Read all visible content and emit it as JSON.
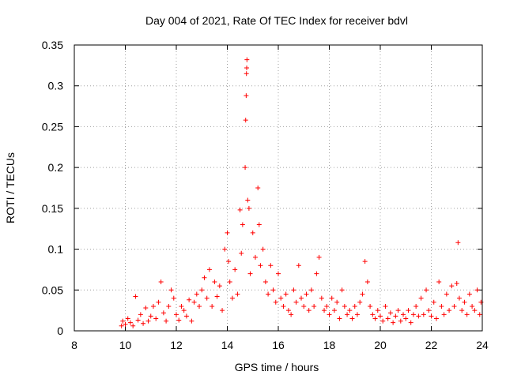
{
  "chart_data": {
    "type": "scatter",
    "title": "Day 004 of 2021, Rate Of TEC Index for receiver bdvl",
    "xlabel": "GPS time / hours",
    "ylabel": "ROTI / TECUs",
    "xlim": [
      8,
      24
    ],
    "ylim": [
      0,
      0.35
    ],
    "xticks": [
      8,
      10,
      12,
      14,
      16,
      18,
      20,
      22,
      24
    ],
    "yticks": [
      0,
      0.05,
      0.1,
      0.15,
      0.2,
      0.25,
      0.3,
      0.35
    ],
    "xtick_labels": [
      "8",
      "10",
      "12",
      "14",
      "16",
      "18",
      "20",
      "22",
      "24"
    ],
    "ytick_labels": [
      "0",
      "0.05",
      "0.1",
      "0.15",
      "0.2",
      "0.25",
      "0.3",
      "0.35"
    ],
    "grid": true,
    "legend": "none",
    "marker": "+",
    "series": [
      {
        "name": "ROTI",
        "color": "#ff0000",
        "points": [
          [
            9.85,
            0.006
          ],
          [
            9.9,
            0.012
          ],
          [
            10.0,
            0.008
          ],
          [
            10.1,
            0.015
          ],
          [
            10.2,
            0.01
          ],
          [
            10.3,
            0.006
          ],
          [
            10.4,
            0.042
          ],
          [
            10.5,
            0.013
          ],
          [
            10.6,
            0.02
          ],
          [
            10.7,
            0.009
          ],
          [
            10.8,
            0.028
          ],
          [
            10.9,
            0.012
          ],
          [
            11.0,
            0.018
          ],
          [
            11.1,
            0.03
          ],
          [
            11.2,
            0.015
          ],
          [
            11.3,
            0.035
          ],
          [
            11.4,
            0.06
          ],
          [
            11.5,
            0.022
          ],
          [
            11.6,
            0.012
          ],
          [
            11.7,
            0.03
          ],
          [
            11.8,
            0.05
          ],
          [
            11.9,
            0.04
          ],
          [
            12.0,
            0.02
          ],
          [
            12.1,
            0.013
          ],
          [
            12.2,
            0.03
          ],
          [
            12.3,
            0.025
          ],
          [
            12.4,
            0.018
          ],
          [
            12.5,
            0.038
          ],
          [
            12.6,
            0.012
          ],
          [
            12.7,
            0.035
          ],
          [
            12.8,
            0.045
          ],
          [
            12.9,
            0.03
          ],
          [
            13.0,
            0.05
          ],
          [
            13.1,
            0.065
          ],
          [
            13.2,
            0.04
          ],
          [
            13.3,
            0.075
          ],
          [
            13.4,
            0.03
          ],
          [
            13.5,
            0.06
          ],
          [
            13.6,
            0.042
          ],
          [
            13.7,
            0.055
          ],
          [
            13.8,
            0.025
          ],
          [
            13.9,
            0.1
          ],
          [
            14.0,
            0.12
          ],
          [
            14.05,
            0.085
          ],
          [
            14.1,
            0.06
          ],
          [
            14.2,
            0.04
          ],
          [
            14.3,
            0.075
          ],
          [
            14.4,
            0.045
          ],
          [
            14.5,
            0.148
          ],
          [
            14.55,
            0.095
          ],
          [
            14.6,
            0.13
          ],
          [
            14.7,
            0.2
          ],
          [
            14.72,
            0.258
          ],
          [
            14.74,
            0.288
          ],
          [
            14.75,
            0.315
          ],
          [
            14.76,
            0.322
          ],
          [
            14.77,
            0.332
          ],
          [
            14.8,
            0.16
          ],
          [
            14.85,
            0.15
          ],
          [
            14.9,
            0.07
          ],
          [
            15.0,
            0.12
          ],
          [
            15.1,
            0.09
          ],
          [
            15.2,
            0.175
          ],
          [
            15.25,
            0.13
          ],
          [
            15.3,
            0.08
          ],
          [
            15.4,
            0.1
          ],
          [
            15.5,
            0.06
          ],
          [
            15.6,
            0.045
          ],
          [
            15.7,
            0.08
          ],
          [
            15.8,
            0.05
          ],
          [
            15.9,
            0.035
          ],
          [
            16.0,
            0.07
          ],
          [
            16.1,
            0.04
          ],
          [
            16.2,
            0.03
          ],
          [
            16.3,
            0.045
          ],
          [
            16.4,
            0.025
          ],
          [
            16.5,
            0.02
          ],
          [
            16.6,
            0.05
          ],
          [
            16.7,
            0.035
          ],
          [
            16.8,
            0.08
          ],
          [
            16.9,
            0.04
          ],
          [
            17.0,
            0.03
          ],
          [
            17.1,
            0.045
          ],
          [
            17.2,
            0.025
          ],
          [
            17.3,
            0.05
          ],
          [
            17.4,
            0.03
          ],
          [
            17.5,
            0.07
          ],
          [
            17.6,
            0.09
          ],
          [
            17.7,
            0.04
          ],
          [
            17.8,
            0.025
          ],
          [
            17.9,
            0.03
          ],
          [
            18.0,
            0.02
          ],
          [
            18.1,
            0.04
          ],
          [
            18.2,
            0.025
          ],
          [
            18.3,
            0.035
          ],
          [
            18.4,
            0.015
          ],
          [
            18.5,
            0.05
          ],
          [
            18.6,
            0.03
          ],
          [
            18.7,
            0.02
          ],
          [
            18.8,
            0.025
          ],
          [
            18.9,
            0.015
          ],
          [
            19.0,
            0.03
          ],
          [
            19.1,
            0.02
          ],
          [
            19.2,
            0.035
          ],
          [
            19.3,
            0.045
          ],
          [
            19.4,
            0.085
          ],
          [
            19.5,
            0.06
          ],
          [
            19.6,
            0.03
          ],
          [
            19.7,
            0.02
          ],
          [
            19.8,
            0.015
          ],
          [
            19.9,
            0.025
          ],
          [
            20.0,
            0.018
          ],
          [
            20.1,
            0.012
          ],
          [
            20.2,
            0.03
          ],
          [
            20.3,
            0.015
          ],
          [
            20.4,
            0.022
          ],
          [
            20.5,
            0.01
          ],
          [
            20.6,
            0.018
          ],
          [
            20.7,
            0.025
          ],
          [
            20.8,
            0.012
          ],
          [
            20.9,
            0.02
          ],
          [
            21.0,
            0.015
          ],
          [
            21.1,
            0.025
          ],
          [
            21.2,
            0.01
          ],
          [
            21.3,
            0.02
          ],
          [
            21.4,
            0.03
          ],
          [
            21.5,
            0.018
          ],
          [
            21.6,
            0.04
          ],
          [
            21.7,
            0.02
          ],
          [
            21.8,
            0.05
          ],
          [
            21.9,
            0.025
          ],
          [
            22.0,
            0.018
          ],
          [
            22.1,
            0.035
          ],
          [
            22.2,
            0.015
          ],
          [
            22.3,
            0.06
          ],
          [
            22.4,
            0.03
          ],
          [
            22.5,
            0.02
          ],
          [
            22.6,
            0.045
          ],
          [
            22.7,
            0.025
          ],
          [
            22.8,
            0.055
          ],
          [
            22.9,
            0.03
          ],
          [
            23.0,
            0.058
          ],
          [
            23.05,
            0.108
          ],
          [
            23.1,
            0.04
          ],
          [
            23.2,
            0.025
          ],
          [
            23.3,
            0.035
          ],
          [
            23.4,
            0.02
          ],
          [
            23.5,
            0.045
          ],
          [
            23.6,
            0.03
          ],
          [
            23.7,
            0.025
          ],
          [
            23.8,
            0.05
          ],
          [
            23.9,
            0.02
          ],
          [
            23.95,
            0.035
          ]
        ]
      }
    ]
  }
}
